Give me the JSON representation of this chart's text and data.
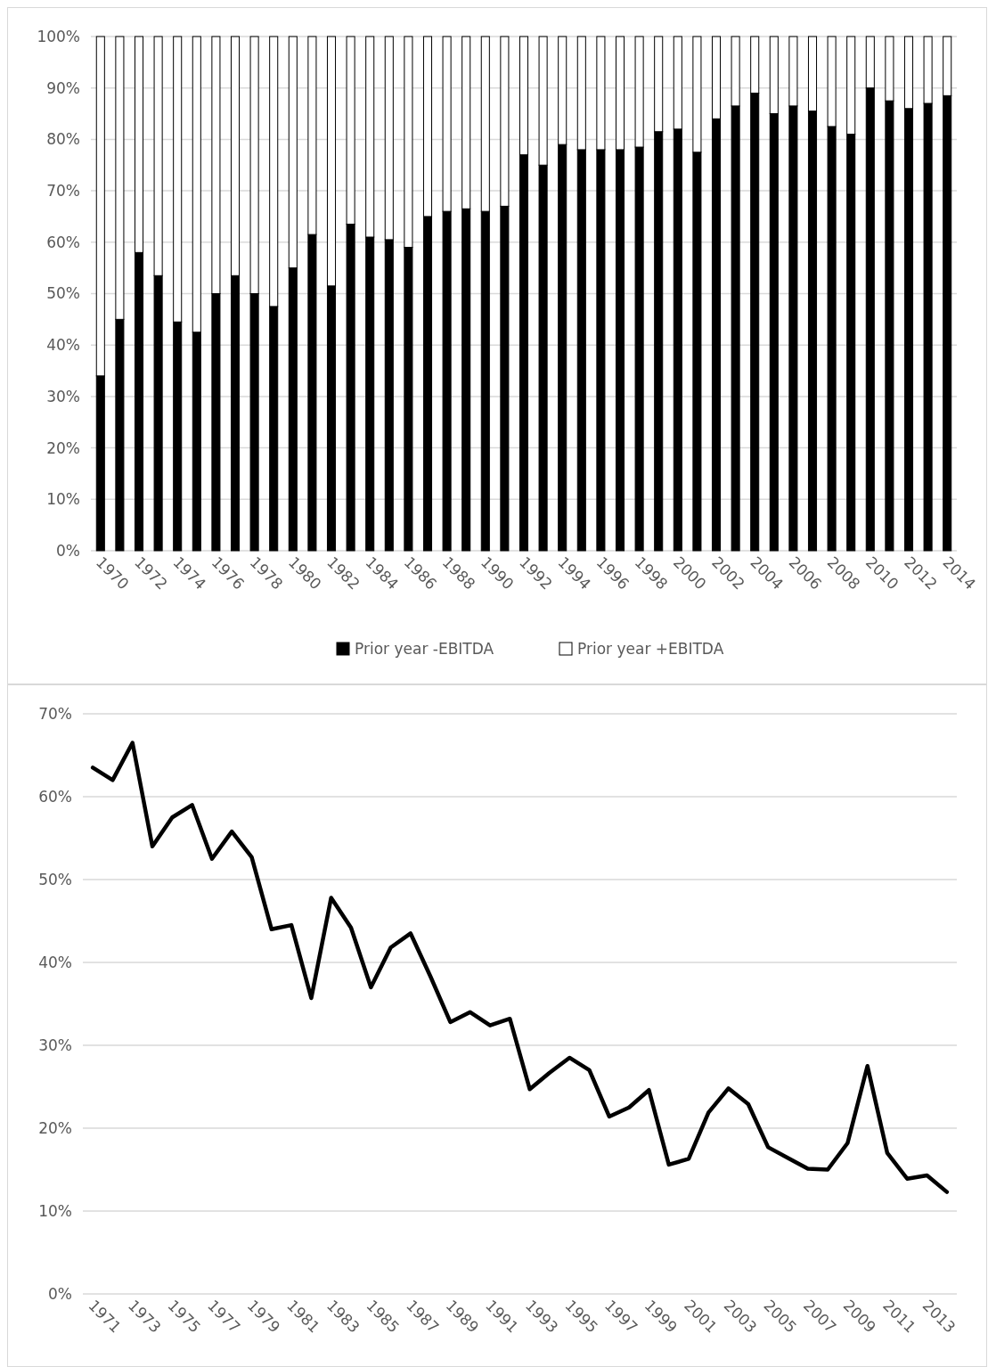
{
  "chart_data": [
    {
      "type": "bar",
      "stacked": true,
      "categories": [
        "1970",
        null,
        "1972",
        null,
        "1974",
        null,
        "1976",
        null,
        "1978",
        null,
        "1980",
        null,
        "1982",
        null,
        "1984",
        null,
        "1986",
        null,
        "1988",
        null,
        "1990",
        null,
        "1992",
        null,
        "1994",
        null,
        "1996",
        null,
        "1998",
        null,
        "2000",
        null,
        "2002",
        null,
        "2004",
        null,
        "2006",
        null,
        "2008",
        null,
        "2010",
        null,
        "2012",
        null,
        "2014"
      ],
      "series": [
        {
          "name": "Prior year -EBITDA",
          "color": "#000000",
          "values": [
            34,
            45,
            58,
            53.5,
            44.5,
            42.5,
            50,
            53.5,
            50,
            47.5,
            55,
            61.5,
            51.5,
            63.5,
            61,
            60.5,
            59,
            65,
            66,
            66.5,
            66,
            67,
            77,
            75,
            79,
            78,
            78,
            78,
            78.5,
            81.5,
            82,
            77.5,
            84,
            86.5,
            89,
            85,
            86.5,
            85.5,
            82.5,
            81,
            90,
            87.5,
            86,
            87,
            88.5
          ]
        },
        {
          "name": "Prior year +EBITDA",
          "color": "#ffffff",
          "values": [
            66,
            55,
            42,
            46.5,
            55.5,
            57.5,
            50,
            46.5,
            50,
            52.5,
            45,
            38.5,
            48.5,
            36.5,
            39,
            39.5,
            41,
            35,
            34,
            33.5,
            34,
            33,
            23,
            25,
            21,
            22,
            22,
            22,
            21.5,
            18.5,
            18,
            22.5,
            16,
            13.5,
            11,
            15,
            13.5,
            14.5,
            17.5,
            19,
            10,
            12.5,
            14,
            13,
            11.5
          ]
        }
      ],
      "ylim": [
        0,
        100
      ],
      "yticks": [
        {
          "value": 0,
          "label": "0%"
        },
        {
          "value": 10,
          "label": "10%"
        },
        {
          "value": 20,
          "label": "20%"
        },
        {
          "value": 30,
          "label": "30%"
        },
        {
          "value": 40,
          "label": "40%"
        },
        {
          "value": 50,
          "label": "50%"
        },
        {
          "value": 60,
          "label": "60%"
        },
        {
          "value": 70,
          "label": "70%"
        },
        {
          "value": 80,
          "label": "80%"
        },
        {
          "value": 90,
          "label": "90%"
        },
        {
          "value": 100,
          "label": "100%"
        }
      ],
      "grid": "y",
      "legend": "bottom"
    },
    {
      "type": "line",
      "categories": [
        "1971",
        null,
        "1973",
        null,
        "1975",
        null,
        "1977",
        null,
        "1979",
        null,
        "1981",
        null,
        "1983",
        null,
        "1985",
        null,
        "1987",
        null,
        "1989",
        null,
        "1991",
        null,
        "1993",
        null,
        "1995",
        null,
        "1997",
        null,
        "1999",
        null,
        "2001",
        null,
        "2003",
        null,
        "2005",
        null,
        "2007",
        null,
        "2009",
        null,
        "2011",
        null,
        "2013",
        null
      ],
      "series": [
        {
          "color": "#000000",
          "values": [
            63.5,
            62,
            66.5,
            54,
            57.5,
            59,
            52.5,
            55.8,
            52.7,
            44,
            44.5,
            35.7,
            47.8,
            44.2,
            37,
            41.8,
            43.5,
            38.3,
            32.8,
            34,
            32.4,
            33.2,
            24.7,
            26.7,
            28.5,
            27,
            21.4,
            22.5,
            24.6,
            15.6,
            16.3,
            21.9,
            24.8,
            22.9,
            17.7,
            16.4,
            15.1,
            15,
            18.2,
            27.5,
            17,
            13.9,
            14.3,
            12.3
          ]
        }
      ],
      "ylim": [
        0,
        70
      ],
      "yticks": [
        {
          "value": 0,
          "label": "0%"
        },
        {
          "value": 10,
          "label": "10%"
        },
        {
          "value": 20,
          "label": "20%"
        },
        {
          "value": 30,
          "label": "30%"
        },
        {
          "value": 40,
          "label": "40%"
        },
        {
          "value": 50,
          "label": "50%"
        },
        {
          "value": 60,
          "label": "60%"
        },
        {
          "value": 70,
          "label": "70%"
        }
      ],
      "grid": "y",
      "legend": false
    }
  ]
}
